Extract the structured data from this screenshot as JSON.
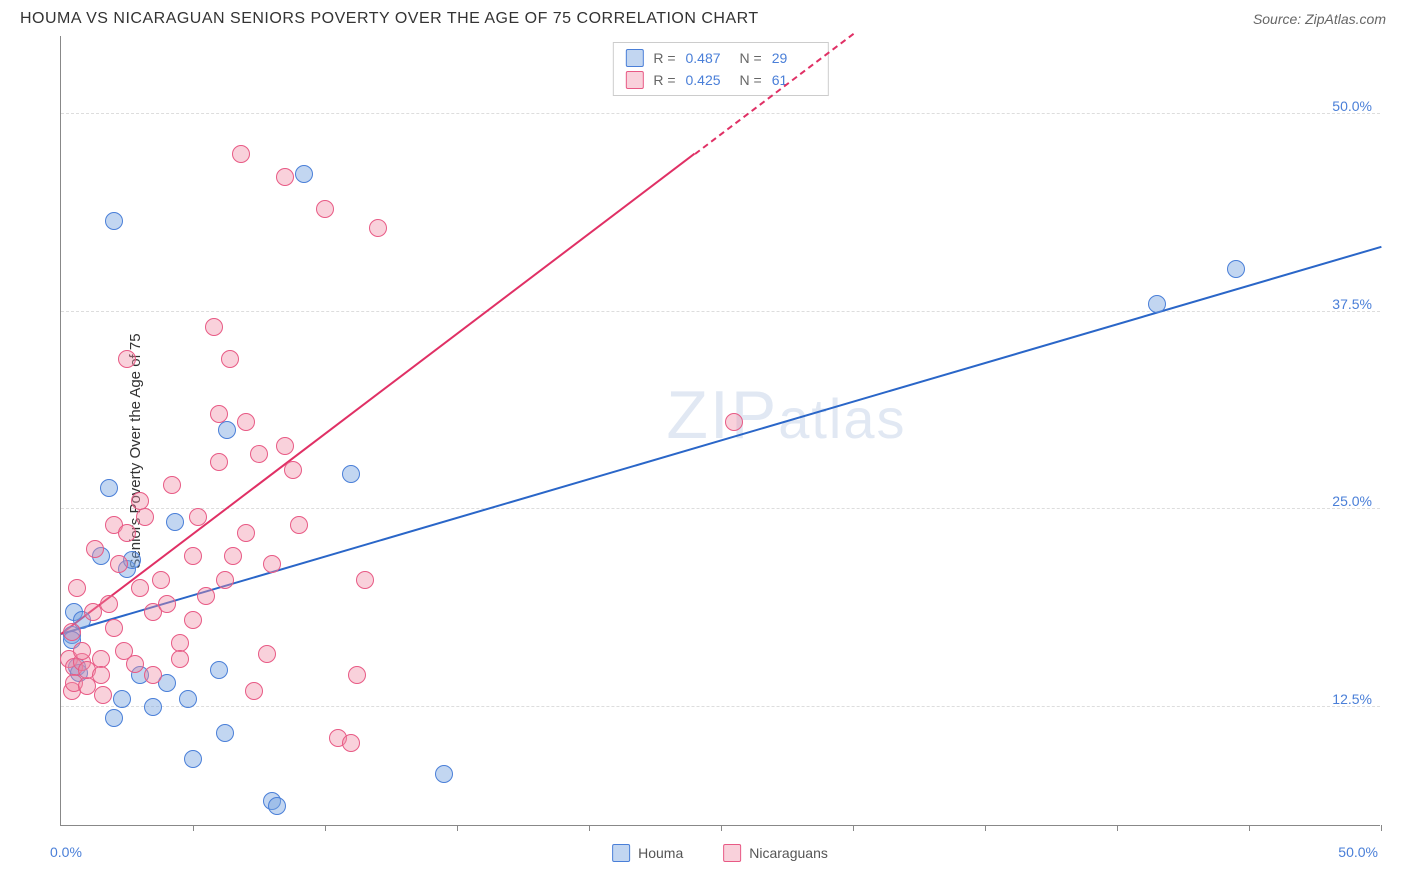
{
  "title": "HOUMA VS NICARAGUAN SENIORS POVERTY OVER THE AGE OF 75 CORRELATION CHART",
  "source_label": "Source: ZipAtlas.com",
  "y_axis_title": "Seniors Poverty Over the Age of 75",
  "watermark": "ZIPatlas",
  "chart": {
    "type": "scatter",
    "xlim": [
      0,
      50
    ],
    "ylim": [
      5,
      55
    ],
    "x_min_label": "0.0%",
    "x_max_label": "50.0%",
    "y_ticks": [
      {
        "v": 12.5,
        "label": "12.5%"
      },
      {
        "v": 25.0,
        "label": "25.0%"
      },
      {
        "v": 37.5,
        "label": "37.5%"
      },
      {
        "v": 50.0,
        "label": "50.0%"
      }
    ],
    "x_tick_positions": [
      5,
      10,
      15,
      20,
      25,
      30,
      35,
      40,
      45,
      50
    ],
    "grid_color": "#dddddd",
    "axis_color": "#888888",
    "background_color": "#ffffff",
    "point_radius": 9,
    "series": [
      {
        "name": "Houma",
        "color_fill": "rgba(120,165,225,0.45)",
        "color_stroke": "#4a7fd8",
        "trend_color": "#2a66c8",
        "trend": {
          "x1": 0,
          "y1": 17.0,
          "x2": 50,
          "y2": 41.5,
          "dashed_from_x": null
        },
        "points": [
          [
            0.4,
            17.0
          ],
          [
            0.4,
            16.7
          ],
          [
            0.5,
            18.5
          ],
          [
            0.6,
            15.0
          ],
          [
            0.7,
            14.6
          ],
          [
            2.0,
            43.2
          ],
          [
            1.5,
            22.0
          ],
          [
            1.8,
            26.3
          ],
          [
            2.3,
            13.0
          ],
          [
            2.5,
            21.2
          ],
          [
            2.7,
            21.8
          ],
          [
            3.0,
            14.5
          ],
          [
            3.5,
            12.5
          ],
          [
            4.0,
            14.0
          ],
          [
            4.3,
            24.2
          ],
          [
            4.8,
            13.0
          ],
          [
            5.0,
            9.2
          ],
          [
            6.0,
            14.8
          ],
          [
            6.2,
            10.8
          ],
          [
            6.3,
            30.0
          ],
          [
            8.0,
            6.5
          ],
          [
            8.2,
            6.2
          ],
          [
            9.2,
            46.2
          ],
          [
            11.0,
            27.2
          ],
          [
            14.5,
            8.2
          ],
          [
            2.0,
            11.8
          ],
          [
            44.5,
            40.2
          ],
          [
            41.5,
            38.0
          ],
          [
            0.8,
            18.0
          ]
        ]
      },
      {
        "name": "Nicaraguans",
        "color_fill": "rgba(240,140,165,0.40)",
        "color_stroke": "#e85a85",
        "trend_color": "#e03065",
        "trend": {
          "x1": 0,
          "y1": 17.0,
          "x2": 30,
          "y2": 55.0,
          "dashed_from_x": 24
        },
        "points": [
          [
            0.3,
            15.5
          ],
          [
            0.4,
            13.5
          ],
          [
            0.4,
            17.2
          ],
          [
            0.5,
            15.0
          ],
          [
            0.5,
            14.0
          ],
          [
            0.6,
            20.0
          ],
          [
            0.8,
            15.3
          ],
          [
            0.8,
            16.0
          ],
          [
            1.0,
            13.8
          ],
          [
            1.0,
            14.8
          ],
          [
            1.2,
            18.5
          ],
          [
            1.3,
            22.5
          ],
          [
            1.5,
            15.5
          ],
          [
            1.5,
            14.5
          ],
          [
            1.6,
            13.2
          ],
          [
            1.8,
            19.0
          ],
          [
            2.0,
            17.5
          ],
          [
            2.0,
            24.0
          ],
          [
            2.2,
            21.5
          ],
          [
            2.4,
            16.0
          ],
          [
            2.5,
            23.5
          ],
          [
            2.5,
            34.5
          ],
          [
            2.8,
            15.2
          ],
          [
            3.0,
            20.0
          ],
          [
            3.0,
            25.5
          ],
          [
            3.2,
            24.5
          ],
          [
            3.5,
            18.5
          ],
          [
            3.5,
            14.5
          ],
          [
            3.8,
            20.5
          ],
          [
            4.0,
            19.0
          ],
          [
            4.2,
            26.5
          ],
          [
            4.5,
            16.5
          ],
          [
            4.5,
            15.5
          ],
          [
            5.0,
            22.0
          ],
          [
            5.0,
            18.0
          ],
          [
            5.2,
            24.5
          ],
          [
            5.5,
            19.5
          ],
          [
            5.8,
            36.5
          ],
          [
            6.0,
            31.0
          ],
          [
            6.0,
            28.0
          ],
          [
            6.2,
            20.5
          ],
          [
            6.4,
            34.5
          ],
          [
            6.5,
            22.0
          ],
          [
            6.8,
            47.5
          ],
          [
            7.0,
            30.5
          ],
          [
            7.0,
            23.5
          ],
          [
            7.3,
            13.5
          ],
          [
            7.5,
            28.5
          ],
          [
            7.8,
            15.8
          ],
          [
            8.0,
            21.5
          ],
          [
            8.5,
            29.0
          ],
          [
            8.8,
            27.5
          ],
          [
            9.0,
            24.0
          ],
          [
            8.5,
            46.0
          ],
          [
            10.0,
            44.0
          ],
          [
            10.5,
            10.5
          ],
          [
            11.0,
            10.2
          ],
          [
            11.2,
            14.5
          ],
          [
            11.5,
            20.5
          ],
          [
            12.0,
            42.8
          ],
          [
            25.5,
            30.5
          ]
        ]
      }
    ],
    "stats": [
      {
        "swatch_fill": "rgba(120,165,225,0.45)",
        "swatch_stroke": "#4a7fd8",
        "r": "0.487",
        "n": "29"
      },
      {
        "swatch_fill": "rgba(240,140,165,0.40)",
        "swatch_stroke": "#e85a85",
        "r": "0.425",
        "n": "61"
      }
    ],
    "bottom_legend": [
      {
        "label": "Houma",
        "swatch_fill": "rgba(120,165,225,0.45)",
        "swatch_stroke": "#4a7fd8"
      },
      {
        "label": "Nicaraguans",
        "swatch_fill": "rgba(240,140,165,0.40)",
        "swatch_stroke": "#e85a85"
      }
    ]
  }
}
